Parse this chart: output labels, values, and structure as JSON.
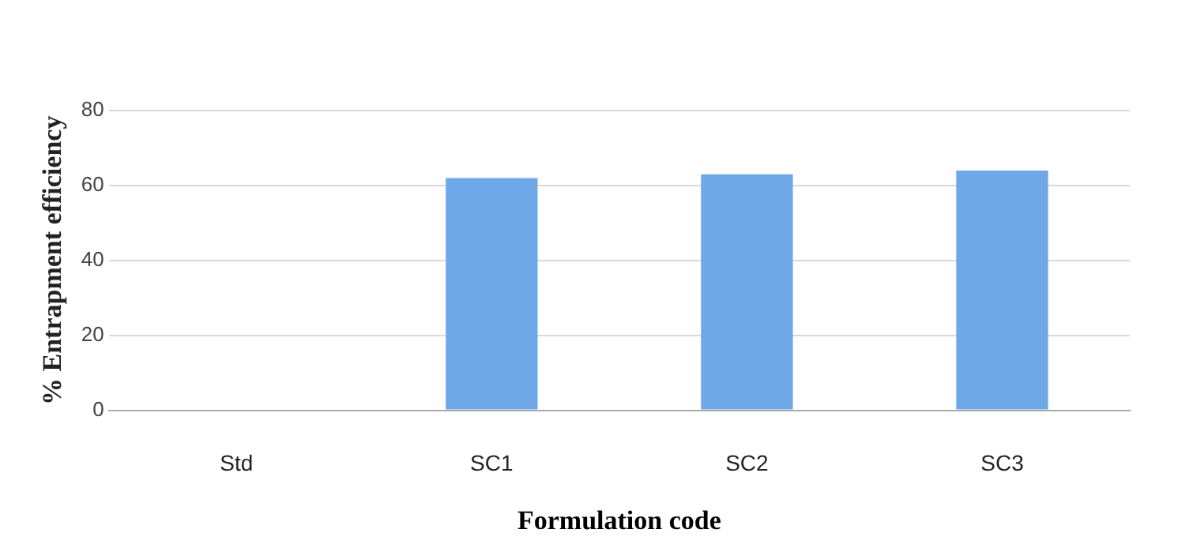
{
  "chart_data": {
    "type": "bar",
    "xlabel": "Formulation code",
    "ylabel": "% Entrapment efficiency",
    "categories": [
      "Std",
      "SC1",
      "SC2",
      "SC3"
    ],
    "values": [
      0,
      62,
      63,
      64
    ],
    "color": "#6fa8e8",
    "ylim": [
      0,
      80
    ],
    "yticks": [
      0,
      20,
      40,
      60,
      80
    ],
    "grid": "y"
  }
}
